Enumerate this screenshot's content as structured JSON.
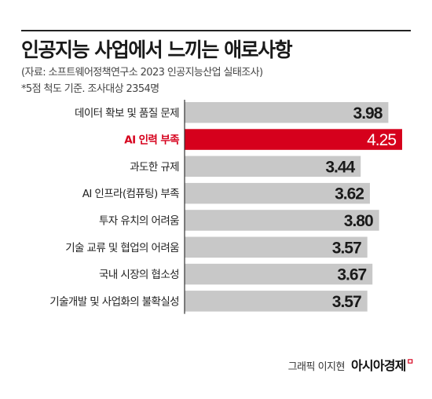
{
  "header": {
    "title": "인공지능 사업에서 느끼는 애로사항",
    "source": "(자료: 소프트웨어정책연구소 2023 인공지능산업 실태조사)",
    "note": "*5점 척도 기준. 조사대상 2354명"
  },
  "credit": {
    "byline": "그래픽 이지현",
    "logo": "아시아경제",
    "logo_mark": "ㅁ"
  },
  "colors": {
    "bar": "#c8c8c8",
    "highlight": "#d6001c",
    "axis": "#333333"
  },
  "chart_data": {
    "type": "bar",
    "orientation": "horizontal",
    "categories": [
      "데이터 확보 및 품질 문제",
      "AI 인력 부족",
      "과도한 규제",
      "AI 인프라(컴퓨팅) 부족",
      "투자 유치의 어려움",
      "기술 교류 및 협업의 어려움",
      "국내 시장의 협소성",
      "기술개발 및 사업화의 불확실성"
    ],
    "values": [
      3.98,
      4.25,
      3.44,
      3.62,
      3.8,
      3.57,
      3.67,
      3.57
    ],
    "value_labels": [
      "3.98",
      "4.25",
      "3.44",
      "3.62",
      "3.80",
      "3.57",
      "3.67",
      "3.57"
    ],
    "highlight_index": 1,
    "title": "인공지능 사업에서 느끼는 애로사항",
    "xlim": [
      0,
      4.25
    ],
    "grid": false
  }
}
